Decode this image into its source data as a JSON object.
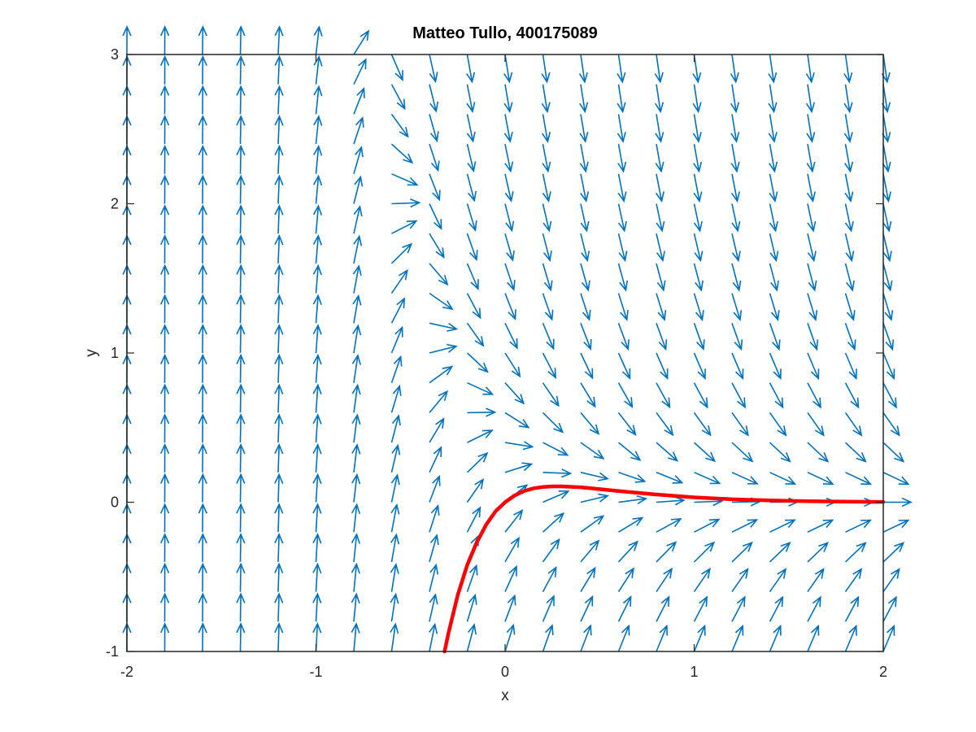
{
  "chart_data": {
    "type": "quiver",
    "title": "Matteo Tullo, 400175089",
    "xlabel": "x",
    "ylabel": "y",
    "xlim": [
      -2,
      2
    ],
    "ylim": [
      -1,
      3
    ],
    "xticks": [
      "-2",
      "-1",
      "0",
      "1",
      "2"
    ],
    "yticks": [
      "-1",
      "0",
      "1",
      "2",
      "3"
    ],
    "grid": false,
    "field": {
      "x_start": -2,
      "x_step": 0.2,
      "x_count": 21,
      "y_start": -1,
      "y_step": 0.2,
      "y_count": 21,
      "color": "#0072BD"
    },
    "series": [
      {
        "color": "#FF0000",
        "x": [
          -0.32,
          -0.3,
          -0.25,
          -0.2,
          -0.15,
          -0.1,
          -0.05,
          0.0,
          0.05,
          0.1,
          0.15,
          0.2,
          0.25,
          0.3,
          0.4,
          0.5,
          0.6,
          0.8,
          1.0,
          1.2,
          1.4,
          1.6,
          1.8,
          2.0
        ],
        "y": [
          -1.0,
          -0.88,
          -0.62,
          -0.42,
          -0.27,
          -0.15,
          -0.06,
          0.0,
          0.045,
          0.075,
          0.093,
          0.102,
          0.106,
          0.106,
          0.1,
          0.088,
          0.075,
          0.052,
          0.033,
          0.02,
          0.012,
          0.007,
          0.004,
          0.002
        ]
      }
    ]
  }
}
